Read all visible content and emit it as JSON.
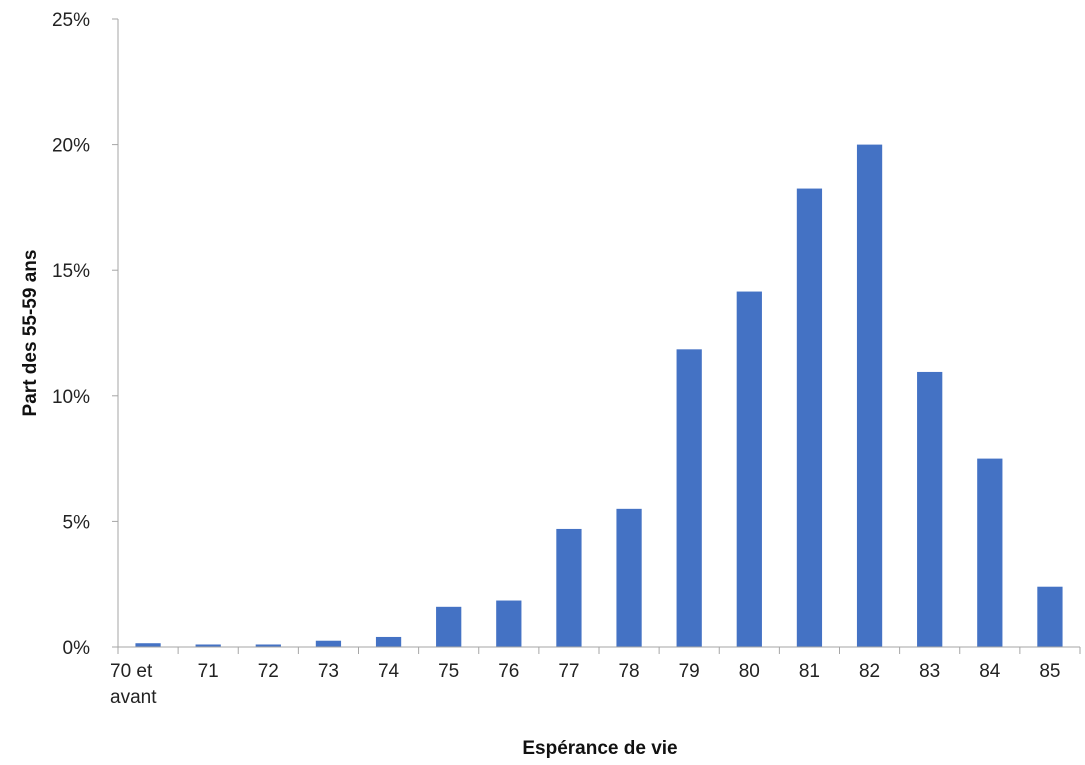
{
  "chart_data": {
    "type": "bar",
    "title": "",
    "xlabel": "Espérance de vie",
    "ylabel": "Part des 55-59 ans",
    "categories": [
      "70 et avant",
      "71",
      "72",
      "73",
      "74",
      "75",
      "76",
      "77",
      "78",
      "79",
      "80",
      "81",
      "82",
      "83",
      "84",
      "85"
    ],
    "category_lines": [
      [
        "70 et",
        "avant"
      ],
      [
        "71"
      ],
      [
        "72"
      ],
      [
        "73"
      ],
      [
        "74"
      ],
      [
        "75"
      ],
      [
        "76"
      ],
      [
        "77"
      ],
      [
        "78"
      ],
      [
        "79"
      ],
      [
        "80"
      ],
      [
        "81"
      ],
      [
        "82"
      ],
      [
        "83"
      ],
      [
        "84"
      ],
      [
        "85"
      ]
    ],
    "values": [
      0.15,
      0.1,
      0.1,
      0.25,
      0.4,
      1.6,
      1.85,
      4.7,
      5.5,
      11.85,
      14.15,
      18.25,
      20.0,
      10.95,
      7.5,
      2.4
    ],
    "ylim": [
      0,
      25
    ],
    "yticks": [
      0,
      5,
      10,
      15,
      20,
      25
    ],
    "ytick_labels": [
      "0%",
      "5%",
      "10%",
      "15%",
      "20%",
      "25%"
    ],
    "grid": false,
    "legend": "none",
    "colors": {
      "bar": "#4472C4",
      "axis": "#a6a6a6"
    }
  }
}
